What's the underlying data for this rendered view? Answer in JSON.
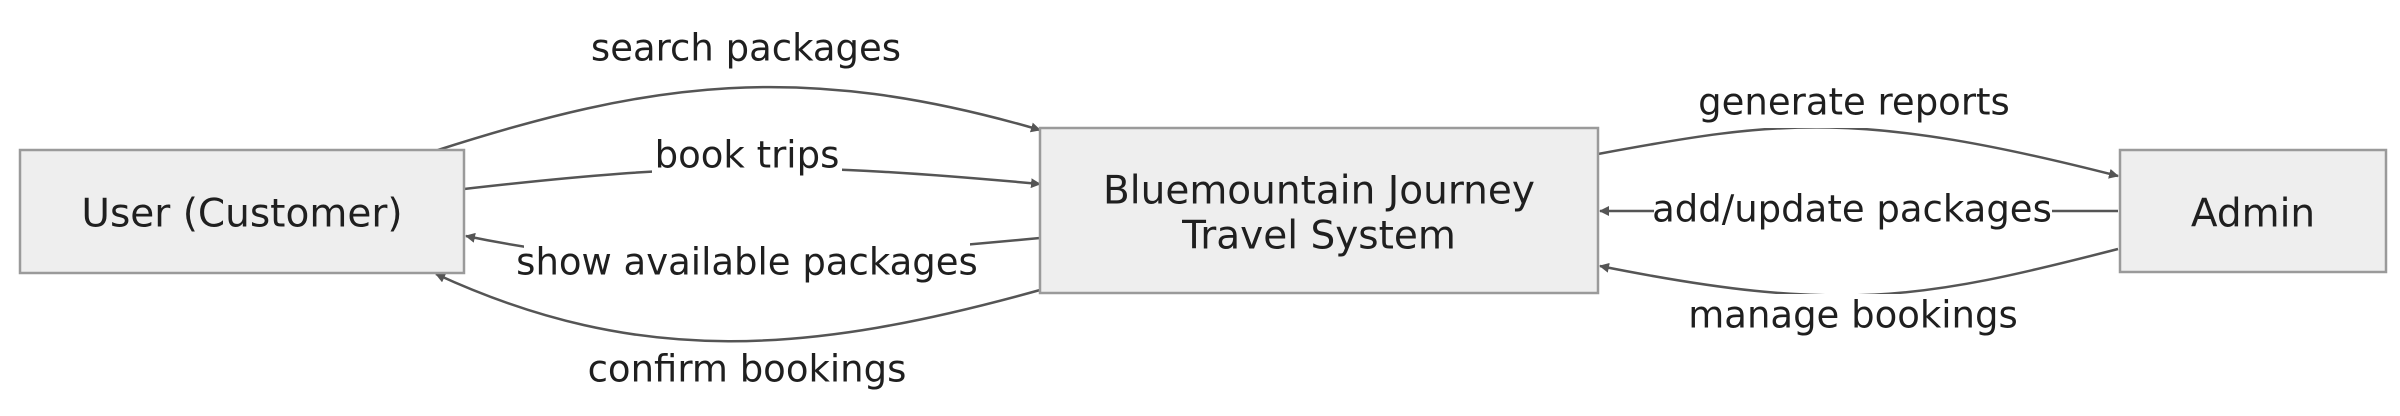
{
  "diagram": {
    "nodes": {
      "user": {
        "label": "User (Customer)"
      },
      "system": {
        "label_line1": "Bluemountain Journey",
        "label_line2": "Travel System"
      },
      "admin": {
        "label": "Admin"
      }
    },
    "edges": {
      "search_packages": "search packages",
      "book_trips": "book trips",
      "show_available_packages": "show available packages",
      "confirm_bookings": "confirm bookings",
      "generate_reports": "generate reports",
      "add_update_packages": "add/update packages",
      "manage_bookings": "manage bookings"
    },
    "colors": {
      "node_fill": "#eeeeee",
      "node_stroke": "#9a9a9a",
      "edge_stroke": "#555555",
      "text": "#1f1f1f"
    }
  }
}
